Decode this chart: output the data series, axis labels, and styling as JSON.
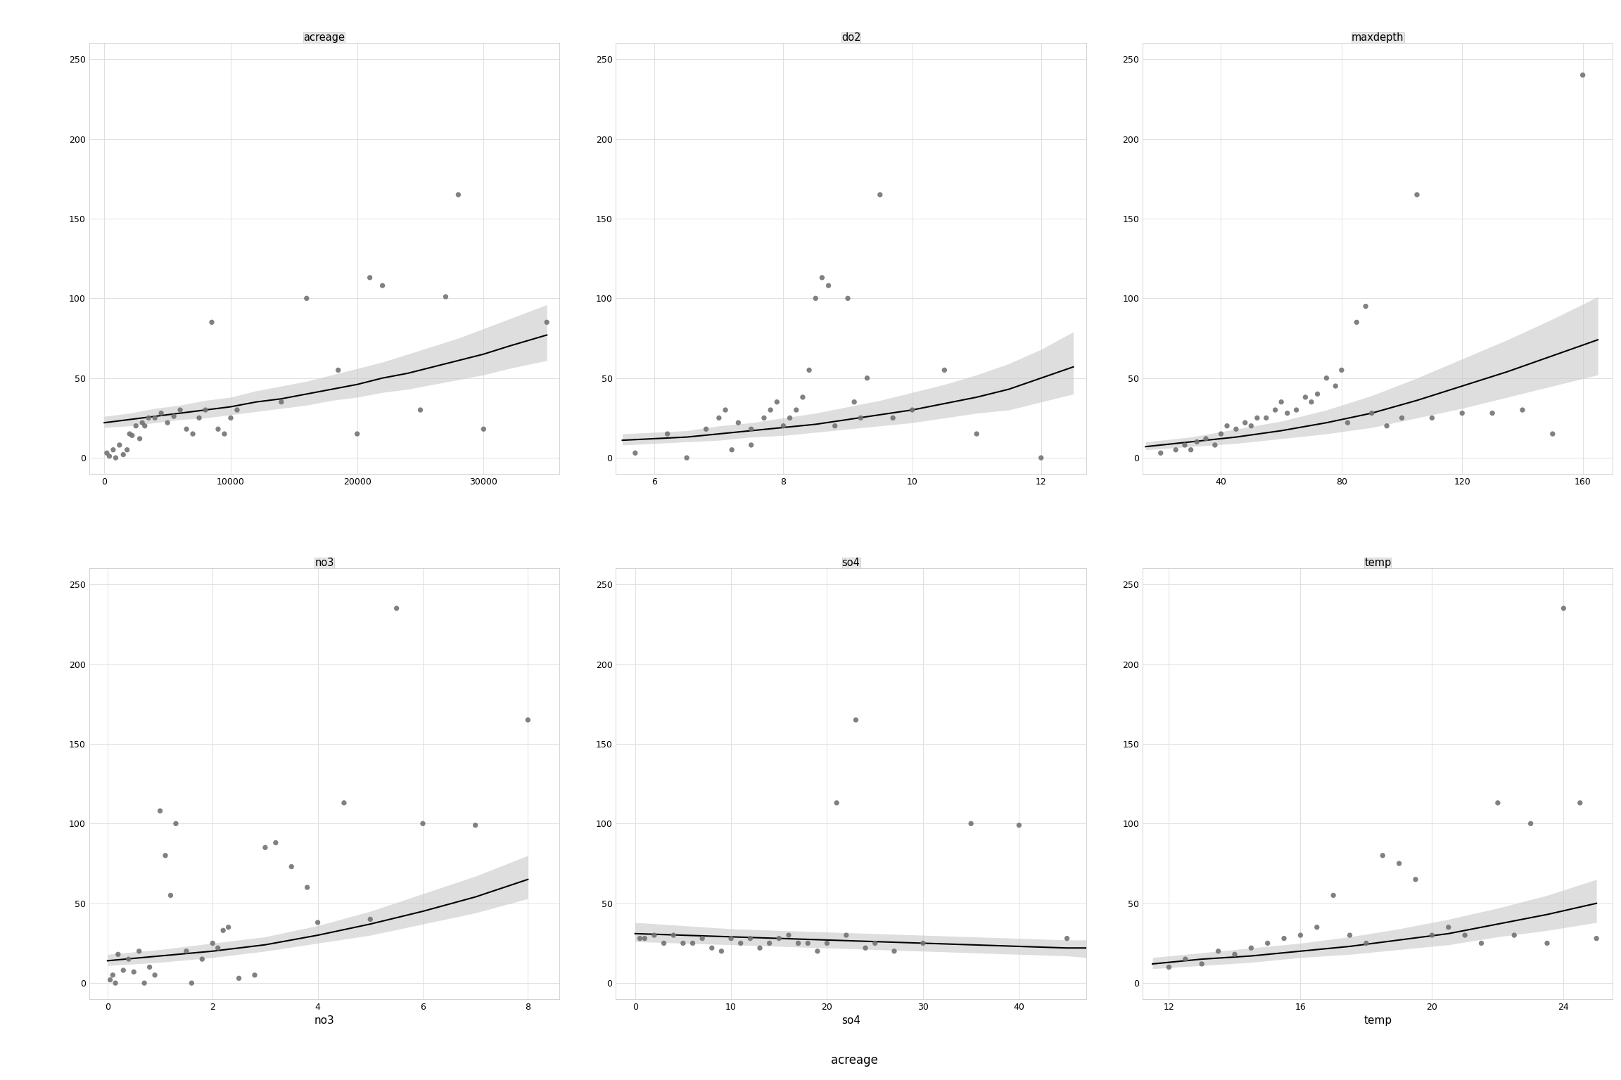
{
  "panels": [
    {
      "title": "acreage",
      "xlim": [
        -1200,
        36000
      ],
      "xticks": [
        0,
        10000,
        20000,
        30000
      ],
      "xticklabels": [
        "0",
        "10000",
        "20000",
        "30000"
      ],
      "ylim": [
        -10,
        260
      ],
      "yticks": [
        0,
        50,
        100,
        150,
        200,
        250
      ],
      "x_scatter": [
        200,
        400,
        700,
        900,
        1200,
        1500,
        1800,
        2000,
        2200,
        2500,
        2800,
        3000,
        3200,
        3500,
        4000,
        4500,
        5000,
        5500,
        6000,
        6500,
        7000,
        7500,
        8000,
        8500,
        9000,
        9500,
        10000,
        10500,
        14000,
        16000,
        18500,
        20000,
        21000,
        22000,
        25000,
        27000,
        28000,
        30000,
        35000
      ],
      "y_scatter": [
        3,
        1,
        5,
        0,
        8,
        2,
        5,
        15,
        14,
        20,
        12,
        22,
        20,
        25,
        25,
        28,
        22,
        26,
        30,
        18,
        15,
        25,
        30,
        85,
        18,
        15,
        25,
        30,
        35,
        100,
        55,
        15,
        113,
        108,
        30,
        101,
        165,
        18,
        85
      ],
      "fit_x": [
        0,
        2000,
        4000,
        6000,
        8000,
        10000,
        12000,
        14000,
        16000,
        18000,
        20000,
        22000,
        24000,
        26000,
        28000,
        30000,
        32000,
        35000
      ],
      "fit_y": [
        22,
        24,
        26,
        28,
        30,
        32,
        35,
        37,
        40,
        43,
        46,
        50,
        53,
        57,
        61,
        65,
        70,
        77
      ],
      "ci_low": [
        19,
        20,
        22,
        24,
        25,
        27,
        29,
        31,
        33,
        36,
        38,
        41,
        43,
        46,
        49,
        52,
        56,
        61
      ],
      "ci_high": [
        26,
        28,
        31,
        33,
        36,
        38,
        42,
        45,
        48,
        52,
        56,
        60,
        65,
        70,
        75,
        81,
        87,
        96
      ]
    },
    {
      "title": "do2",
      "xlim": [
        5.4,
        12.7
      ],
      "xticks": [
        6,
        8,
        10,
        12
      ],
      "xticklabels": [
        "6",
        "8",
        "10",
        "12"
      ],
      "ylim": [
        -10,
        260
      ],
      "yticks": [
        0,
        50,
        100,
        150,
        200,
        250
      ],
      "x_scatter": [
        5.7,
        6.2,
        6.5,
        6.8,
        7.0,
        7.1,
        7.2,
        7.3,
        7.5,
        7.5,
        7.7,
        7.8,
        7.9,
        8.0,
        8.1,
        8.2,
        8.3,
        8.4,
        8.5,
        8.6,
        8.7,
        8.8,
        9.0,
        9.1,
        9.2,
        9.3,
        9.5,
        9.7,
        10.0,
        10.5,
        11.0,
        12.0
      ],
      "y_scatter": [
        3,
        15,
        0,
        18,
        25,
        30,
        5,
        22,
        18,
        8,
        25,
        30,
        35,
        20,
        25,
        30,
        38,
        55,
        100,
        113,
        108,
        20,
        100,
        35,
        25,
        50,
        165,
        25,
        30,
        55,
        15,
        0
      ],
      "fit_x": [
        5.5,
        6.0,
        6.5,
        7.0,
        7.5,
        8.0,
        8.5,
        9.0,
        9.5,
        10.0,
        10.5,
        11.0,
        11.5,
        12.0,
        12.5
      ],
      "fit_y": [
        11,
        12,
        13,
        15,
        17,
        19,
        21,
        24,
        27,
        30,
        34,
        38,
        43,
        50,
        57
      ],
      "ci_low": [
        8,
        9,
        10,
        11,
        13,
        14,
        16,
        18,
        20,
        22,
        25,
        28,
        30,
        35,
        40
      ],
      "ci_high": [
        15,
        16,
        17,
        20,
        22,
        25,
        28,
        32,
        36,
        41,
        46,
        52,
        59,
        68,
        79
      ]
    },
    {
      "title": "maxdepth",
      "xlim": [
        14,
        170
      ],
      "xticks": [
        40,
        80,
        120,
        160
      ],
      "xticklabels": [
        "40",
        "80",
        "120",
        "160"
      ],
      "ylim": [
        -10,
        260
      ],
      "yticks": [
        0,
        50,
        100,
        150,
        200,
        250
      ],
      "x_scatter": [
        20,
        25,
        28,
        30,
        32,
        35,
        38,
        40,
        42,
        45,
        48,
        50,
        52,
        55,
        58,
        60,
        62,
        65,
        68,
        70,
        72,
        75,
        78,
        80,
        82,
        85,
        88,
        90,
        95,
        100,
        105,
        110,
        120,
        130,
        140,
        150,
        160
      ],
      "y_scatter": [
        3,
        5,
        8,
        5,
        10,
        12,
        8,
        15,
        20,
        18,
        22,
        20,
        25,
        25,
        30,
        35,
        28,
        30,
        38,
        35,
        40,
        50,
        45,
        55,
        22,
        85,
        95,
        28,
        20,
        25,
        165,
        25,
        28,
        28,
        30,
        15,
        240
      ],
      "fit_x": [
        15,
        30,
        45,
        60,
        75,
        90,
        105,
        120,
        135,
        150,
        165
      ],
      "fit_y": [
        7,
        10,
        13,
        17,
        22,
        28,
        36,
        45,
        54,
        64,
        74
      ],
      "ci_low": [
        5,
        7,
        9,
        12,
        15,
        19,
        25,
        31,
        38,
        45,
        52
      ],
      "ci_high": [
        10,
        13,
        18,
        23,
        30,
        39,
        50,
        62,
        74,
        87,
        101
      ]
    },
    {
      "title": "no3",
      "xlim": [
        -0.35,
        8.6
      ],
      "xticks": [
        0,
        2,
        4,
        6,
        8
      ],
      "xticklabels": [
        "0",
        "2",
        "4",
        "6",
        "8"
      ],
      "ylim": [
        -10,
        260
      ],
      "yticks": [
        0,
        50,
        100,
        150,
        200,
        250
      ],
      "x_scatter": [
        0.05,
        0.1,
        0.15,
        0.2,
        0.3,
        0.4,
        0.5,
        0.6,
        0.7,
        0.8,
        0.9,
        1.0,
        1.1,
        1.2,
        1.3,
        1.5,
        1.6,
        1.8,
        2.0,
        2.1,
        2.2,
        2.3,
        2.5,
        2.8,
        3.0,
        3.2,
        3.5,
        3.8,
        4.0,
        4.5,
        5.0,
        5.5,
        6.0,
        7.0,
        8.0
      ],
      "y_scatter": [
        2,
        5,
        0,
        18,
        8,
        15,
        7,
        20,
        0,
        10,
        5,
        108,
        80,
        55,
        100,
        20,
        0,
        15,
        25,
        22,
        33,
        35,
        3,
        5,
        85,
        88,
        73,
        60,
        38,
        113,
        40,
        235,
        100,
        99,
        165
      ],
      "fit_x": [
        0,
        1,
        2,
        3,
        4,
        5,
        6,
        7,
        8
      ],
      "fit_y": [
        14,
        17,
        20,
        24,
        30,
        37,
        45,
        54,
        65
      ],
      "ci_low": [
        11,
        13,
        16,
        20,
        25,
        30,
        37,
        44,
        53
      ],
      "ci_high": [
        18,
        21,
        25,
        29,
        36,
        45,
        56,
        67,
        80
      ]
    },
    {
      "title": "so4",
      "xlim": [
        -2.0,
        47
      ],
      "xticks": [
        0,
        10,
        20,
        30,
        40
      ],
      "xticklabels": [
        "0",
        "10",
        "20",
        "30",
        "40"
      ],
      "ylim": [
        -10,
        260
      ],
      "yticks": [
        0,
        50,
        100,
        150,
        200,
        250
      ],
      "x_scatter": [
        0.5,
        1.0,
        2.0,
        3.0,
        4.0,
        5.0,
        6.0,
        7.0,
        8.0,
        9.0,
        10.0,
        11.0,
        12.0,
        13.0,
        14.0,
        15.0,
        16.0,
        17.0,
        18.0,
        19.0,
        20.0,
        21.0,
        22.0,
        23.0,
        24.0,
        25.0,
        27.0,
        30.0,
        35.0,
        40.0,
        45.0
      ],
      "y_scatter": [
        28,
        28,
        30,
        25,
        30,
        25,
        25,
        28,
        22,
        20,
        28,
        25,
        28,
        22,
        25,
        28,
        30,
        25,
        25,
        20,
        25,
        113,
        30,
        165,
        22,
        25,
        20,
        25,
        100,
        99,
        28
      ],
      "fit_x": [
        0,
        5,
        10,
        15,
        20,
        25,
        30,
        35,
        40,
        45,
        47
      ],
      "fit_y": [
        31,
        30,
        29,
        28,
        27,
        26,
        25,
        24,
        23,
        22,
        22
      ],
      "ci_low": [
        26,
        25,
        24,
        23,
        22,
        21,
        20,
        19,
        18,
        17,
        16
      ],
      "ci_high": [
        38,
        36,
        34,
        33,
        32,
        31,
        30,
        29,
        28,
        27,
        27
      ]
    },
    {
      "title": "temp",
      "xlim": [
        11.2,
        25.5
      ],
      "xticks": [
        12,
        16,
        20,
        24
      ],
      "xticklabels": [
        "12",
        "16",
        "20",
        "24"
      ],
      "ylim": [
        -10,
        260
      ],
      "yticks": [
        0,
        50,
        100,
        150,
        200,
        250
      ],
      "x_scatter": [
        12.0,
        12.5,
        13.0,
        13.5,
        14.0,
        14.5,
        15.0,
        15.5,
        16.0,
        16.5,
        17.0,
        17.5,
        18.0,
        18.5,
        19.0,
        19.5,
        20.0,
        20.5,
        21.0,
        21.5,
        22.0,
        22.5,
        23.0,
        23.5,
        24.0,
        24.5,
        25.0
      ],
      "y_scatter": [
        10,
        15,
        12,
        20,
        18,
        22,
        25,
        28,
        30,
        35,
        55,
        30,
        25,
        80,
        75,
        65,
        30,
        35,
        30,
        25,
        113,
        30,
        100,
        25,
        235,
        113,
        28
      ],
      "fit_x": [
        11.5,
        13,
        14.5,
        16,
        17.5,
        19,
        20.5,
        22,
        23.5,
        25
      ],
      "fit_y": [
        12,
        15,
        17,
        20,
        23,
        27,
        31,
        37,
        43,
        50
      ],
      "ci_low": [
        9,
        11,
        13,
        16,
        18,
        21,
        24,
        29,
        33,
        38
      ],
      "ci_high": [
        16,
        19,
        22,
        25,
        29,
        34,
        40,
        47,
        55,
        65
      ]
    }
  ],
  "scatter_color": "#737373",
  "line_color": "#000000",
  "ci_color": "#c8c8c8",
  "panel_header_color": "#e8e8e8",
  "panel_border_color": "#cccccc",
  "grid_color": "#e0e0e0",
  "title_fontsize": 10.5,
  "tick_fontsize": 9,
  "axis_label_fontsize": 11,
  "common_xlabel": "acreage"
}
